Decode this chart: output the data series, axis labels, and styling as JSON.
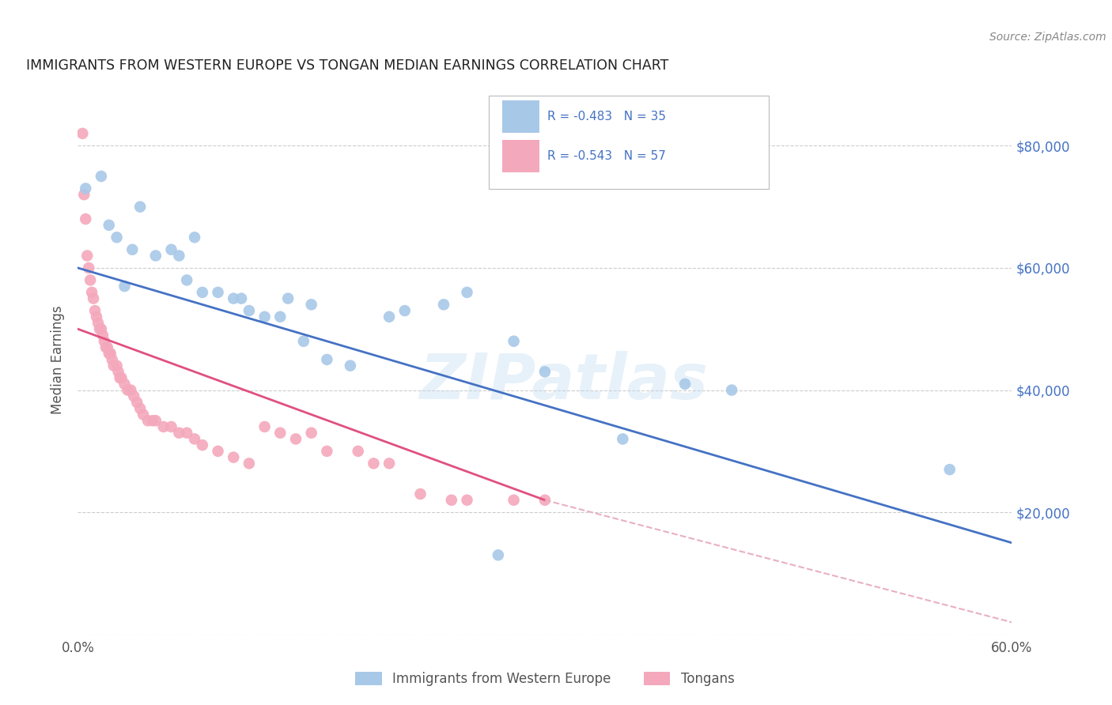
{
  "title": "IMMIGRANTS FROM WESTERN EUROPE VS TONGAN MEDIAN EARNINGS CORRELATION CHART",
  "source": "Source: ZipAtlas.com",
  "ylabel": "Median Earnings",
  "watermark": "ZIPatlas",
  "blue_r": -0.483,
  "blue_n": 35,
  "pink_r": -0.543,
  "pink_n": 57,
  "blue_label": "Immigrants from Western Europe",
  "pink_label": "Tongans",
  "xlim": [
    0.0,
    0.6
  ],
  "ylim": [
    0,
    90000
  ],
  "yticks": [
    0,
    20000,
    40000,
    60000,
    80000
  ],
  "ytick_labels": [
    "",
    "$20,000",
    "$40,000",
    "$60,000",
    "$80,000"
  ],
  "xticks": [
    0.0,
    0.1,
    0.2,
    0.3,
    0.4,
    0.5,
    0.6
  ],
  "xtick_labels": [
    "0.0%",
    "",
    "",
    "",
    "",
    "",
    "60.0%"
  ],
  "blue_scatter_x": [
    0.005,
    0.015,
    0.02,
    0.025,
    0.03,
    0.035,
    0.04,
    0.05,
    0.06,
    0.065,
    0.07,
    0.075,
    0.08,
    0.09,
    0.1,
    0.105,
    0.11,
    0.12,
    0.13,
    0.135,
    0.145,
    0.15,
    0.16,
    0.175,
    0.2,
    0.21,
    0.235,
    0.25,
    0.28,
    0.3,
    0.35,
    0.39,
    0.42,
    0.56,
    0.27
  ],
  "blue_scatter_y": [
    73000,
    75000,
    67000,
    65000,
    57000,
    63000,
    70000,
    62000,
    63000,
    62000,
    58000,
    65000,
    56000,
    56000,
    55000,
    55000,
    53000,
    52000,
    52000,
    55000,
    48000,
    54000,
    45000,
    44000,
    52000,
    53000,
    54000,
    56000,
    48000,
    43000,
    32000,
    41000,
    40000,
    27000,
    13000
  ],
  "pink_scatter_x": [
    0.003,
    0.004,
    0.005,
    0.006,
    0.007,
    0.008,
    0.009,
    0.01,
    0.011,
    0.012,
    0.013,
    0.014,
    0.015,
    0.016,
    0.017,
    0.018,
    0.019,
    0.02,
    0.021,
    0.022,
    0.023,
    0.025,
    0.026,
    0.027,
    0.028,
    0.03,
    0.032,
    0.034,
    0.036,
    0.038,
    0.04,
    0.042,
    0.045,
    0.048,
    0.05,
    0.055,
    0.06,
    0.065,
    0.07,
    0.075,
    0.08,
    0.09,
    0.1,
    0.11,
    0.12,
    0.13,
    0.14,
    0.15,
    0.16,
    0.18,
    0.19,
    0.2,
    0.22,
    0.24,
    0.25,
    0.28,
    0.3
  ],
  "pink_scatter_y": [
    82000,
    72000,
    68000,
    62000,
    60000,
    58000,
    56000,
    55000,
    53000,
    52000,
    51000,
    50000,
    50000,
    49000,
    48000,
    47000,
    47000,
    46000,
    46000,
    45000,
    44000,
    44000,
    43000,
    42000,
    42000,
    41000,
    40000,
    40000,
    39000,
    38000,
    37000,
    36000,
    35000,
    35000,
    35000,
    34000,
    34000,
    33000,
    33000,
    32000,
    31000,
    30000,
    29000,
    28000,
    34000,
    33000,
    32000,
    33000,
    30000,
    30000,
    28000,
    28000,
    23000,
    22000,
    22000,
    22000,
    22000
  ],
  "blue_line_x": [
    0.0,
    0.6
  ],
  "blue_line_y": [
    60000,
    15000
  ],
  "pink_line_x": [
    0.0,
    0.3
  ],
  "pink_line_y": [
    50000,
    22000
  ],
  "pink_dashed_line_x": [
    0.3,
    0.6
  ],
  "pink_dashed_line_y": [
    22000,
    2000
  ],
  "blue_color": "#a8c8e8",
  "pink_color": "#f4a8bc",
  "blue_line_color": "#4472c4",
  "pink_line_color": "#e05080",
  "pink_dashed_color": "#e8b0c0",
  "background_color": "#ffffff",
  "grid_color": "#cccccc",
  "right_axis_color": "#4472c4",
  "title_color": "#222222",
  "source_color": "#888888",
  "legend_text_color": "#333333"
}
